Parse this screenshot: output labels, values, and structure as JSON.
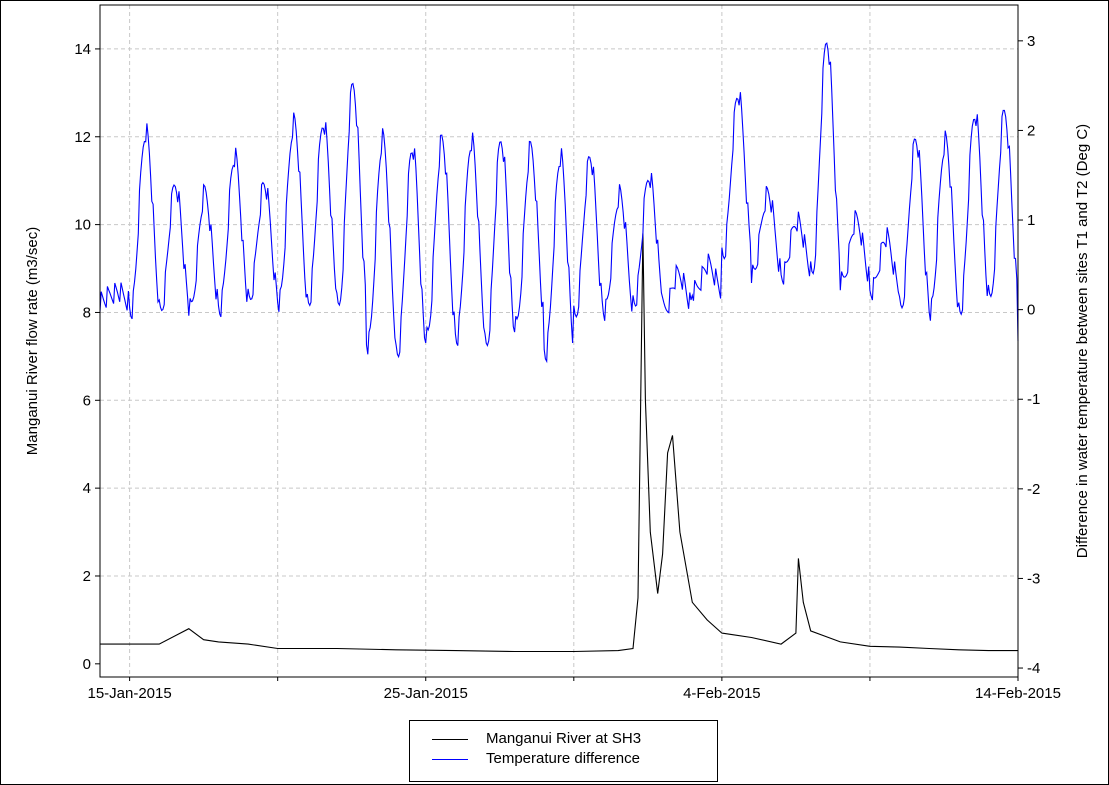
{
  "chart_data": {
    "type": "line",
    "xlabel": "",
    "ylabel": "Manganui River flow rate (m3/sec)",
    "y2label": "Difference in water temperature between sites T1 and T2 (Deg C)",
    "x_range": [
      "2015-01-14",
      "2015-02-14"
    ],
    "x_ticks": [
      "15-Jan-2015",
      "25-Jan-2015",
      "4-Feb-2015",
      "14-Feb-2015"
    ],
    "x_tick_dates": [
      "2015-01-15",
      "2015-01-25",
      "2015-02-04",
      "2015-02-14"
    ],
    "ylim": [
      -0.3,
      15
    ],
    "y_ticks": [
      0,
      2,
      4,
      6,
      8,
      10,
      12,
      14
    ],
    "y2lim": [
      -4.1,
      3.4
    ],
    "y2_ticks": [
      -4,
      -3,
      -2,
      -1,
      0,
      1,
      2,
      3
    ],
    "grid": true,
    "legend_position": "bottom-center",
    "series": [
      {
        "name": "Manganui River at SH3",
        "color": "#000000",
        "axis": "left",
        "x": [
          "2015-01-14",
          "2015-01-15",
          "2015-01-16",
          "2015-01-17",
          "2015-01-17T12:00",
          "2015-01-18",
          "2015-01-19",
          "2015-01-20",
          "2015-01-22",
          "2015-01-24",
          "2015-01-26",
          "2015-01-28",
          "2015-01-30",
          "2015-01-31T12:00",
          "2015-02-01",
          "2015-02-01T04:00",
          "2015-02-01T06:00",
          "2015-02-01T08:00",
          "2015-02-01T10:00",
          "2015-02-01T14:00",
          "2015-02-01T20:00",
          "2015-02-02T00:00",
          "2015-02-02T04:00",
          "2015-02-02T08:00",
          "2015-02-02T14:00",
          "2015-02-03",
          "2015-02-03T12:00",
          "2015-02-04",
          "2015-02-05",
          "2015-02-06",
          "2015-02-06T12:00",
          "2015-02-06T14:00",
          "2015-02-06T18:00",
          "2015-02-07",
          "2015-02-08",
          "2015-02-09",
          "2015-02-10",
          "2015-02-11",
          "2015-02-12",
          "2015-02-13",
          "2015-02-14"
        ],
        "y": [
          0.45,
          0.45,
          0.45,
          0.8,
          0.55,
          0.5,
          0.45,
          0.35,
          0.35,
          0.32,
          0.3,
          0.28,
          0.28,
          0.3,
          0.35,
          1.5,
          5.5,
          9.8,
          6.0,
          3.0,
          1.6,
          2.5,
          4.8,
          5.2,
          3.0,
          1.4,
          1.0,
          0.7,
          0.6,
          0.45,
          0.7,
          2.4,
          1.4,
          0.75,
          0.5,
          0.4,
          0.38,
          0.35,
          0.32,
          0.3,
          0.3
        ]
      },
      {
        "name": "Temperature difference",
        "color": "#0000ff",
        "axis": "right",
        "x": [
          "2015-01-14",
          "2015-01-15",
          "2015-01-16",
          "2015-01-17",
          "2015-01-18",
          "2015-01-19",
          "2015-01-20",
          "2015-01-21",
          "2015-01-22",
          "2015-01-23",
          "2015-01-24",
          "2015-01-25",
          "2015-01-26",
          "2015-01-27",
          "2015-01-28",
          "2015-01-29",
          "2015-01-30",
          "2015-01-31",
          "2015-02-01",
          "2015-02-02",
          "2015-02-03",
          "2015-02-04",
          "2015-02-05",
          "2015-02-06",
          "2015-02-07",
          "2015-02-08",
          "2015-02-09",
          "2015-02-10",
          "2015-02-11",
          "2015-02-12",
          "2015-02-13",
          "2015-02-14"
        ],
        "y": [
          0.2,
          2.0,
          1.4,
          1.3,
          1.7,
          1.4,
          2.1,
          2.1,
          2.5,
          1.9,
          1.8,
          1.9,
          1.9,
          1.9,
          1.8,
          1.7,
          1.7,
          1.3,
          1.5,
          0.4,
          0.5,
          2.4,
          1.3,
          1.0,
          3.0,
          1.0,
          0.8,
          1.9,
          1.9,
          2.2,
          2.2,
          -0.3
        ],
        "y_daily_min": [
          0.1,
          0.0,
          0.0,
          0.0,
          0.0,
          0.1,
          0.1,
          0.1,
          0.0,
          -0.4,
          -0.5,
          -0.3,
          -0.3,
          -0.4,
          -0.2,
          -0.5,
          -0.1,
          0.0,
          0.1,
          0.0,
          0.2,
          0.6,
          0.4,
          0.4,
          0.4,
          0.3,
          0.2,
          0.0,
          0.0,
          0.0,
          0.1,
          -0.3
        ]
      }
    ]
  },
  "legend": {
    "items": [
      {
        "label": "Manganui River at SH3",
        "color": "#000000"
      },
      {
        "label": "Temperature difference",
        "color": "#0000ff"
      }
    ]
  }
}
